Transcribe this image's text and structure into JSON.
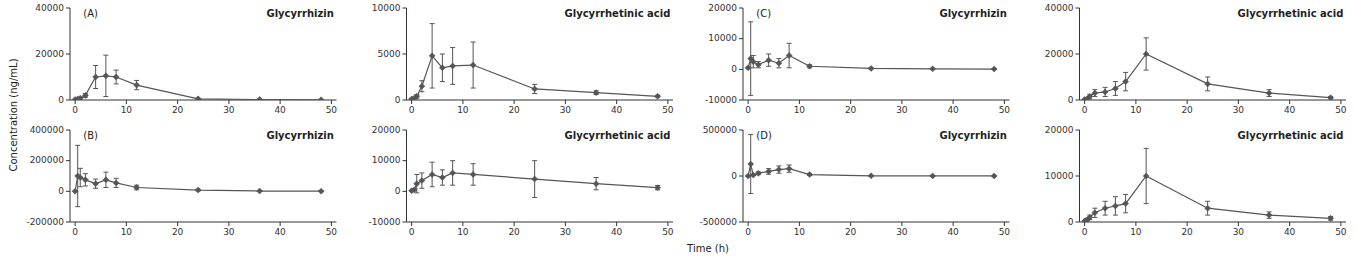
{
  "chart_data": [
    {
      "type": "line",
      "annotation": "(A)",
      "title": "Glycyrrhizin",
      "color": "#555555",
      "marker": "diamond",
      "x": [
        0,
        0.5,
        1,
        2,
        4,
        6,
        8,
        12,
        24,
        36,
        48
      ],
      "values": [
        200,
        400,
        800,
        2000,
        10000,
        10500,
        10000,
        6500,
        500,
        200,
        100
      ],
      "errors": [
        100,
        200,
        400,
        800,
        5000,
        9000,
        3000,
        2000,
        200,
        100,
        50
      ],
      "xlim": [
        -1,
        51
      ],
      "xticks": [
        0,
        10,
        20,
        30,
        40,
        50
      ],
      "ylim": [
        0,
        40000
      ],
      "yticks": [
        0,
        20000,
        40000
      ]
    },
    {
      "type": "line",
      "title": "Glycyrrhetinic acid",
      "color": "#555555",
      "marker": "diamond",
      "x": [
        0,
        0.5,
        1,
        2,
        4,
        6,
        8,
        12,
        24,
        36,
        48
      ],
      "values": [
        100,
        200,
        400,
        1500,
        4800,
        3500,
        3700,
        3800,
        1200,
        800,
        400
      ],
      "errors": [
        50,
        100,
        200,
        600,
        3500,
        1500,
        2000,
        2500,
        500,
        200,
        100
      ],
      "xlim": [
        -1,
        51
      ],
      "xticks": [
        0,
        10,
        20,
        30,
        40,
        50
      ],
      "ylim": [
        0,
        10000
      ],
      "yticks": [
        0,
        5000,
        10000
      ]
    },
    {
      "type": "line",
      "annotation": "(C)",
      "title": "Glycyrrhizin",
      "color": "#555555",
      "marker": "diamond",
      "x": [
        0,
        0.5,
        1,
        2,
        4,
        6,
        8,
        12,
        24,
        36,
        48
      ],
      "values": [
        500,
        3500,
        2500,
        1500,
        3000,
        2000,
        4500,
        1000,
        300,
        150,
        80
      ],
      "errors": [
        200,
        12000,
        2000,
        1000,
        2000,
        1500,
        4000,
        500,
        150,
        80,
        40
      ],
      "xlim": [
        -1,
        51
      ],
      "xticks": [
        0,
        10,
        20,
        30,
        40,
        50
      ],
      "ylim": [
        -10000,
        20000
      ],
      "yticks": [
        -10000,
        0,
        10000,
        20000
      ]
    },
    {
      "type": "line",
      "title": "Glycyrrhetinic acid",
      "color": "#555555",
      "marker": "diamond",
      "x": [
        0,
        0.5,
        1,
        2,
        4,
        6,
        8,
        12,
        24,
        36,
        48
      ],
      "values": [
        200,
        500,
        1500,
        3000,
        3500,
        5000,
        8000,
        20000,
        7000,
        3000,
        1000
      ],
      "errors": [
        100,
        300,
        1000,
        1500,
        2000,
        3000,
        4000,
        7000,
        3000,
        1500,
        500
      ],
      "xlim": [
        -1,
        51
      ],
      "xticks": [
        0,
        10,
        20,
        30,
        40,
        50
      ],
      "ylim": [
        0,
        40000
      ],
      "yticks": [
        0,
        20000,
        40000
      ]
    },
    {
      "type": "line",
      "annotation": "(B)",
      "title": "Glycyrrhizin",
      "color": "#555555",
      "marker": "diamond",
      "x": [
        0,
        0.5,
        1,
        2,
        4,
        6,
        8,
        12,
        24,
        36,
        48
      ],
      "values": [
        500,
        100000,
        90000,
        75000,
        50000,
        75000,
        55000,
        25000,
        8000,
        2000,
        800
      ],
      "errors": [
        200,
        200000,
        60000,
        40000,
        30000,
        50000,
        30000,
        15000,
        5000,
        1000,
        400
      ],
      "xlim": [
        -1,
        51
      ],
      "xticks": [
        0,
        10,
        20,
        30,
        40,
        50
      ],
      "ylim": [
        -200000,
        400000
      ],
      "yticks": [
        -200000,
        0,
        200000,
        400000
      ]
    },
    {
      "type": "line",
      "title": "Glycyrrhetinic acid",
      "color": "#555555",
      "marker": "diamond",
      "x": [
        0,
        0.5,
        1,
        2,
        4,
        6,
        8,
        12,
        24,
        36,
        48
      ],
      "values": [
        200,
        500,
        2500,
        3500,
        5500,
        4500,
        6000,
        5500,
        4000,
        2500,
        1200
      ],
      "errors": [
        100,
        300,
        3000,
        2500,
        4000,
        2500,
        4000,
        3500,
        6000,
        2000,
        700
      ],
      "xlim": [
        -1,
        51
      ],
      "xticks": [
        0,
        10,
        20,
        30,
        40,
        50
      ],
      "ylim": [
        -10000,
        20000
      ],
      "yticks": [
        -10000,
        0,
        10000,
        20000
      ]
    },
    {
      "type": "line",
      "annotation": "(D)",
      "title": "Glycyrrhizin",
      "color": "#555555",
      "marker": "diamond",
      "x": [
        0,
        0.5,
        1,
        2,
        4,
        6,
        8,
        12,
        24,
        36,
        48
      ],
      "values": [
        500,
        130000,
        10000,
        30000,
        50000,
        70000,
        80000,
        15000,
        2000,
        800,
        300
      ],
      "errors": [
        200,
        320000,
        5000,
        15000,
        30000,
        40000,
        40000,
        8000,
        1000,
        400,
        150
      ],
      "xlim": [
        -1,
        51
      ],
      "xticks": [
        0,
        10,
        20,
        30,
        40,
        50
      ],
      "ylim": [
        -500000,
        500000
      ],
      "yticks": [
        -500000,
        0,
        500000
      ]
    },
    {
      "type": "line",
      "title": "Glycyrrhetinic acid",
      "color": "#555555",
      "marker": "diamond",
      "x": [
        0,
        0.5,
        1,
        2,
        4,
        6,
        8,
        12,
        24,
        36,
        48
      ],
      "values": [
        200,
        500,
        1000,
        2000,
        3000,
        3500,
        4000,
        10000,
        3000,
        1500,
        800
      ],
      "errors": [
        100,
        300,
        500,
        1000,
        1500,
        2000,
        2000,
        6000,
        1500,
        700,
        400
      ],
      "xlim": [
        -1,
        51
      ],
      "xticks": [
        0,
        10,
        20,
        30,
        40,
        50
      ],
      "ylim": [
        0,
        20000
      ],
      "yticks": [
        0,
        10000,
        20000
      ]
    }
  ],
  "xlabel": "Time (h)",
  "ylabel": "Concentration (ng/mL)"
}
